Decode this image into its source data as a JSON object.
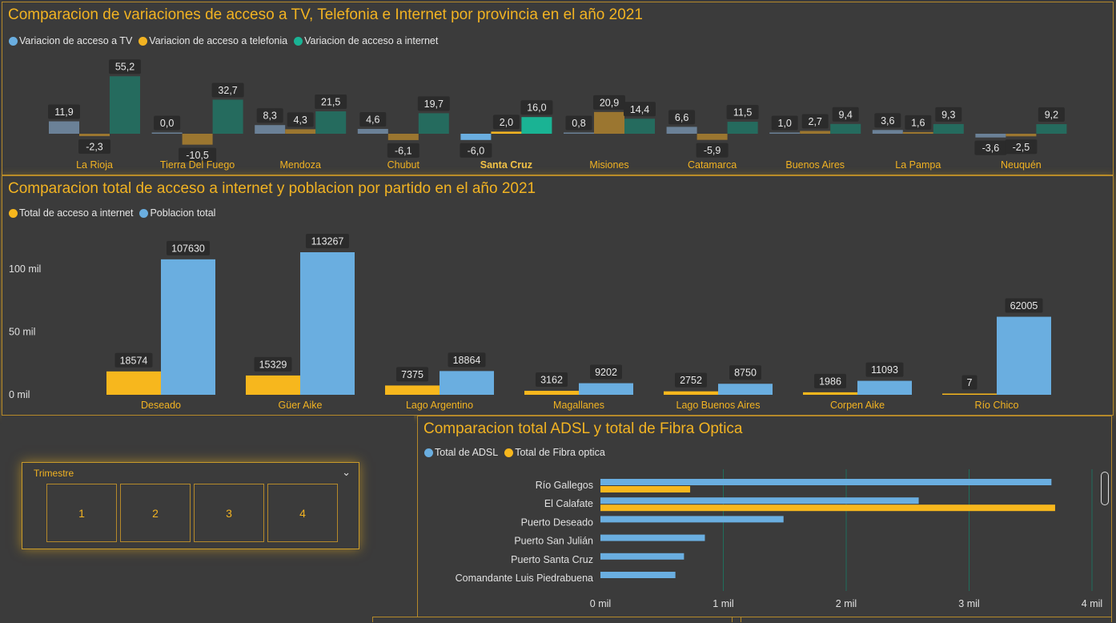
{
  "colors": {
    "tv": "#6b8197",
    "tel": "#9b7630",
    "net": "#256b5e",
    "tv_hl": "#6aaee0",
    "tel_hl": "#f2b322",
    "net_hl": "#1ab394",
    "internet_total": "#f7b71d",
    "poblacion": "#6aaee0",
    "adsl": "#6aaee0",
    "fibra": "#f7b71d",
    "title": "#f2b322"
  },
  "panel1": {
    "title": "Comparacion de variaciones de acceso a TV, Telefonia e Internet por provincia en el año 2021",
    "legend": [
      "Variacion de acceso a TV",
      "Variacion de acceso a telefonia",
      "Variacion de acceso a internet"
    ],
    "legend_colors": [
      "#6aaee0",
      "#f2b322",
      "#1ab394"
    ]
  },
  "panel2": {
    "title": "Comparacion total de acceso a internet y poblacion por partido en el año 2021",
    "legend": [
      "Total de acceso a internet",
      "Poblacion total"
    ],
    "legend_colors": [
      "#f7b71d",
      "#6aaee0"
    ],
    "y_ticks": [
      "100 mil",
      "50 mil",
      "0 mil"
    ]
  },
  "panel4": {
    "title": "Comparacion total ADSL y total de Fibra Optica",
    "legend": [
      "Total de ADSL",
      "Total de Fibra optica"
    ],
    "legend_colors": [
      "#6aaee0",
      "#f7b71d"
    ],
    "x_ticks": [
      "0 mil",
      "1 mil",
      "2 mil",
      "3 mil",
      "4 mil"
    ]
  },
  "slicer": {
    "title": "Trimestre",
    "options": [
      "1",
      "2",
      "3",
      "4"
    ]
  },
  "chart_data": [
    {
      "type": "bar",
      "title": "Comparacion de variaciones de acceso a TV, Telefonia e Internet por provincia en el año 2021",
      "categories": [
        "La Rioja",
        "Tierra Del Fuego",
        "Mendoza",
        "Chubut",
        "Santa Cruz",
        "Misiones",
        "Catamarca",
        "Buenos Aires",
        "La Pampa",
        "Neuquén"
      ],
      "highlighted_category": "Santa Cruz",
      "series": [
        {
          "name": "Variacion de acceso a TV",
          "values": [
            11.9,
            0.0,
            8.3,
            4.6,
            -6.0,
            0.8,
            6.6,
            1.0,
            3.6,
            -3.6
          ],
          "labels": [
            "11,9",
            "0,0",
            "8,3",
            "4,6",
            "-6,0",
            "0,8",
            "6,6",
            "1,0",
            "3,6",
            "-3,6"
          ]
        },
        {
          "name": "Variacion de acceso a telefonia",
          "values": [
            -2.3,
            -10.5,
            4.3,
            -6.1,
            2.0,
            20.9,
            -5.9,
            2.7,
            1.6,
            -2.5
          ],
          "labels": [
            "-2,3",
            "-10,5",
            "4,3",
            "-6,1",
            "2,0",
            "20,9",
            "-5,9",
            "2,7",
            "1,6",
            "-2,5"
          ]
        },
        {
          "name": "Variacion de acceso a internet",
          "values": [
            55.2,
            32.7,
            21.5,
            19.7,
            16.0,
            14.4,
            11.5,
            9.4,
            9.3,
            9.2
          ],
          "labels": [
            "55,2",
            "32,7",
            "21,5",
            "19,7",
            "16,0",
            "14,4",
            "11,5",
            "9,4",
            "9,3",
            "9,2"
          ]
        }
      ],
      "legend": "top-left"
    },
    {
      "type": "bar",
      "title": "Comparacion total de acceso a internet y poblacion por partido en el año 2021",
      "categories": [
        "Deseado",
        "Güer Aike",
        "Lago Argentino",
        "Magallanes",
        "Lago Buenos Aires",
        "Corpen Aike",
        "Río Chico"
      ],
      "series": [
        {
          "name": "Total de acceso a internet",
          "values": [
            18574,
            15329,
            7375,
            3162,
            2752,
            1986,
            7
          ]
        },
        {
          "name": "Poblacion total",
          "values": [
            107630,
            113267,
            18864,
            9202,
            8750,
            11093,
            62005
          ]
        }
      ],
      "ylim": [
        0,
        113267
      ],
      "y_ticks": [
        0,
        50000,
        100000
      ],
      "legend": "top-left"
    },
    {
      "type": "bar",
      "orientation": "horizontal",
      "title": "Comparacion total ADSL y total de Fibra Optica",
      "categories": [
        "Río Gallegos",
        "El Calafate",
        "Puerto Deseado",
        "Puerto San Julián",
        "Puerto Santa Cruz",
        "Comandante Luis Piedrabuena"
      ],
      "series": [
        {
          "name": "Total de ADSL",
          "values": [
            3670,
            2590,
            1490,
            850,
            680,
            610
          ]
        },
        {
          "name": "Total de Fibra optica",
          "values": [
            730,
            3700,
            0,
            0,
            0,
            0
          ]
        }
      ],
      "xlim": [
        0,
        4000
      ],
      "x_ticks": [
        0,
        1000,
        2000,
        3000,
        4000
      ],
      "grid": true,
      "legend": "top-left"
    }
  ]
}
